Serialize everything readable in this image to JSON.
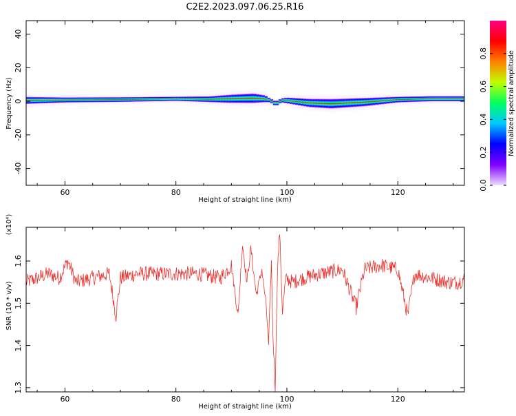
{
  "title": "C2E2.2023.097.06.25.R16",
  "chart_data": [
    {
      "type": "heatmap",
      "xlabel": "Height of straight line (km)",
      "ylabel": "Frequency (Hz)",
      "xlim": [
        53,
        132
      ],
      "ylim": [
        -50,
        48
      ],
      "xticks": [
        60,
        80,
        100,
        120
      ],
      "yticks": [
        -40,
        -20,
        0,
        20,
        40
      ],
      "colorbar": {
        "label": "Normalized spectral amplitude",
        "range": [
          0,
          1
        ],
        "ticks": [
          "0.0",
          "0.2",
          "0.4",
          "0.6",
          "0.8"
        ],
        "stops": [
          "#ecdcff",
          "#8000ff",
          "#0000ff",
          "#00c8ff",
          "#00ff60",
          "#c0ff00",
          "#ff8000",
          "#ff0000",
          "#ff0080"
        ]
      },
      "band_profile": {
        "x": [
          53,
          60,
          70,
          80,
          86,
          90,
          94,
          96,
          97,
          98,
          99,
          100,
          104,
          108,
          114,
          120,
          126,
          132
        ],
        "center_hz": [
          0.5,
          0.8,
          1.0,
          1.5,
          1.2,
          1.5,
          1.8,
          1.5,
          0.5,
          -1.5,
          0.5,
          0.5,
          -1.0,
          -1.5,
          -0.5,
          1.0,
          1.5,
          1.5
        ],
        "half_width_hz": [
          2.2,
          1.6,
          1.5,
          1.3,
          1.8,
          2.6,
          3.0,
          2.2,
          1.2,
          1.5,
          1.2,
          1.8,
          2.6,
          3.0,
          2.6,
          1.8,
          1.6,
          1.6
        ],
        "halo_hz": [
          5.0,
          4.0,
          3.5,
          3.0,
          4.5,
          5.5,
          6.0,
          5.0,
          3.0,
          3.0,
          3.0,
          4.5,
          5.5,
          6.0,
          5.5,
          4.5,
          3.5,
          3.5
        ]
      }
    },
    {
      "type": "line",
      "xlabel": "Height of straight line (km)",
      "ylabel": "SNR (10 * v/v)",
      "y_multiplier": "(x10⁴)",
      "xlim": [
        53,
        132
      ],
      "ylim": [
        1.29,
        1.68
      ],
      "xticks": [
        60,
        80,
        100,
        120
      ],
      "yticks": [
        "1.3",
        "1.4",
        "1.5",
        "1.6"
      ],
      "color": "#e8322e",
      "series": [
        {
          "x": [
            53,
            55,
            57,
            59,
            60.5,
            62,
            65,
            68,
            69.2,
            70,
            73,
            76,
            80,
            84,
            88,
            90,
            91.2,
            92,
            92.8,
            93.5,
            94.5,
            95.5,
            96.3,
            96.7,
            97.2,
            97.5,
            97.9,
            98.3,
            98.7,
            99.2,
            99.8,
            101,
            103,
            106,
            110,
            112.5,
            114,
            117,
            120,
            121.8,
            123,
            126,
            129,
            131,
            132
          ],
          "y": [
            1.55,
            1.56,
            1.57,
            1.56,
            1.6,
            1.55,
            1.56,
            1.57,
            1.47,
            1.56,
            1.57,
            1.57,
            1.57,
            1.57,
            1.56,
            1.59,
            1.47,
            1.64,
            1.55,
            1.63,
            1.52,
            1.58,
            1.49,
            1.4,
            1.6,
            1.42,
            1.3,
            1.58,
            1.67,
            1.48,
            1.56,
            1.55,
            1.56,
            1.57,
            1.58,
            1.49,
            1.58,
            1.59,
            1.58,
            1.47,
            1.57,
            1.56,
            1.55,
            1.55,
            1.56
          ]
        }
      ]
    }
  ]
}
